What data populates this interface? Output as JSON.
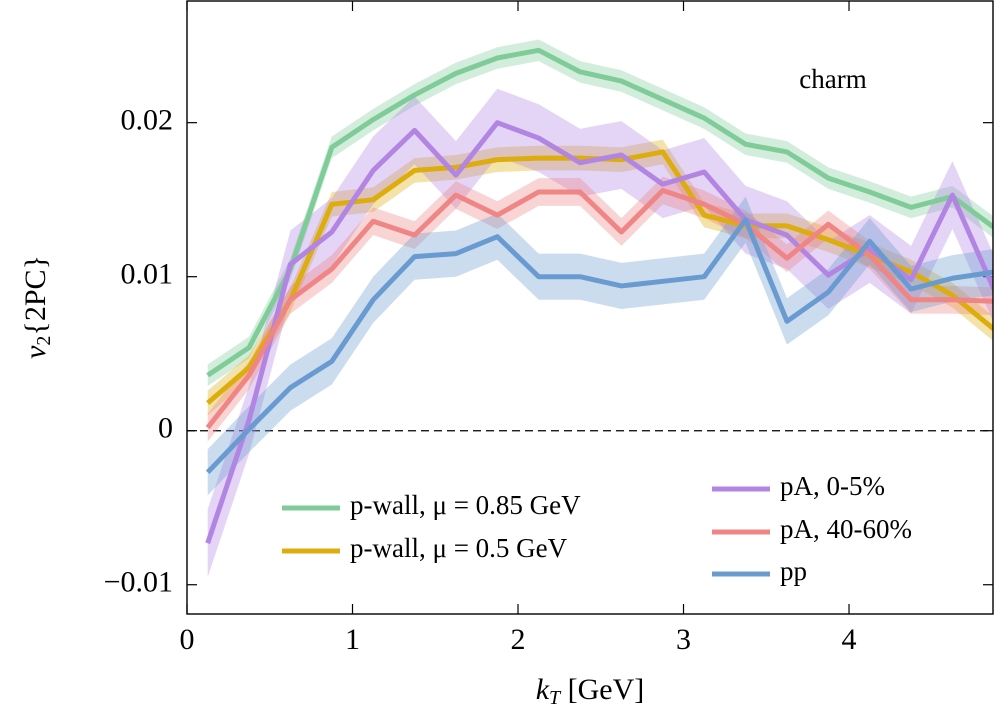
{
  "chart_data": {
    "type": "line",
    "annotation": "charm",
    "xlabel_var": "k",
    "xlabel_sub": "T",
    "xlabel_rest": " [GeV]",
    "ylabel_var": "v",
    "ylabel_sub": "2",
    "ylabel_rest": "{2PC}",
    "x": [
      0.125,
      0.375,
      0.625,
      0.875,
      1.125,
      1.375,
      1.625,
      1.875,
      2.125,
      2.375,
      2.625,
      2.875,
      3.125,
      3.375,
      3.625,
      3.875,
      4.125,
      4.375,
      4.625,
      4.875
    ],
    "series": [
      {
        "name": "p-wall, μ = 0.85 GeV",
        "color": "#7fcc99",
        "error": 0.0007,
        "values": [
          0.0036,
          0.0054,
          0.0105,
          0.0184,
          0.0202,
          0.0218,
          0.0232,
          0.0242,
          0.0247,
          0.0233,
          0.0227,
          0.0215,
          0.0203,
          0.0186,
          0.0181,
          0.0164,
          0.0155,
          0.0145,
          0.0152,
          0.0132
        ]
      },
      {
        "name": "p-wall, μ = 0.5 GeV",
        "color": "#dcad0c",
        "error": 0.0008,
        "values": [
          0.0018,
          0.0041,
          0.0085,
          0.0147,
          0.015,
          0.0169,
          0.0171,
          0.0176,
          0.0177,
          0.0177,
          0.0176,
          0.0181,
          0.014,
          0.0133,
          0.0133,
          0.0124,
          0.0114,
          0.0103,
          0.0088,
          0.0066
        ]
      },
      {
        "name": "pA, 0-5%",
        "color": "#b285e3",
        "error": 0.0022,
        "values": [
          -0.0073,
          0.0007,
          0.0108,
          0.0129,
          0.0169,
          0.0195,
          0.0166,
          0.02,
          0.019,
          0.0174,
          0.0179,
          0.016,
          0.0168,
          0.0137,
          0.0127,
          0.0101,
          0.0118,
          0.0098,
          0.0153,
          0.0092
        ]
      },
      {
        "name": "pA, 40-60%",
        "color": "#ef8585",
        "error": 0.0009,
        "values": [
          0.0002,
          0.0036,
          0.0085,
          0.0105,
          0.0136,
          0.0127,
          0.0153,
          0.014,
          0.0155,
          0.0155,
          0.0129,
          0.0156,
          0.0147,
          0.0134,
          0.0112,
          0.0134,
          0.0114,
          0.0085,
          0.0085,
          0.0084
        ]
      },
      {
        "name": "pp",
        "color": "#6a9bd0",
        "error": 0.0015,
        "values": [
          -0.0027,
          0.0001,
          0.0028,
          0.0045,
          0.0085,
          0.0113,
          0.0115,
          0.0126,
          0.01,
          0.01,
          0.0094,
          0.0097,
          0.01,
          0.0137,
          0.0071,
          0.009,
          0.0123,
          0.0092,
          0.0099,
          0.0103
        ]
      }
    ],
    "xlim": [
      0,
      4.87
    ],
    "ylim": [
      -0.0119,
      0.0279
    ],
    "xticks": [
      0,
      1,
      2,
      3,
      4
    ],
    "yticks": [
      {
        "value": -0.01,
        "label": "−0.01"
      },
      0,
      0.01,
      0.02
    ],
    "zero_line": true,
    "grid": false
  }
}
